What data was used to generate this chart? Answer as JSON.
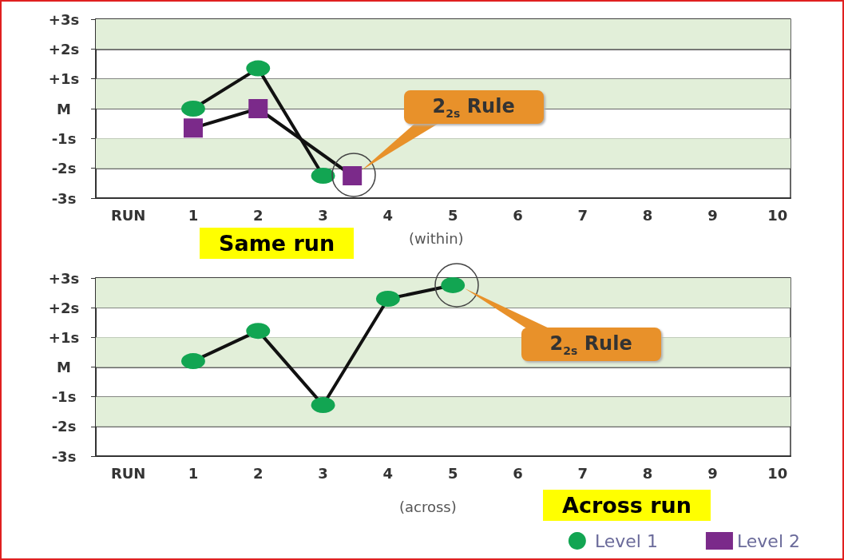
{
  "chart_data": [
    {
      "type": "line",
      "xlim": [
        -0.5,
        10.2
      ],
      "xticks": [
        {
          "value": 0,
          "label": "RUN"
        },
        1,
        2,
        3,
        4,
        5,
        6,
        7,
        8,
        9,
        10
      ],
      "ylim": [
        -3,
        3
      ],
      "yticks": [
        {
          "value": -3,
          "label": "-3s"
        },
        {
          "value": -2,
          "label": "-2s"
        },
        {
          "value": -1,
          "label": "-1s"
        },
        {
          "value": 0,
          "label": "M"
        },
        {
          "value": 1,
          "label": "+1s"
        },
        {
          "value": 2,
          "label": "+2s"
        },
        {
          "value": 3,
          "label": "+3s"
        }
      ],
      "grid": "y",
      "legend": "bottom right",
      "bands": [
        {
          "axis": "y",
          "from": 2,
          "to": 3,
          "color": "#e2efd9"
        },
        {
          "axis": "y",
          "from": 0,
          "to": 1,
          "color": "#e2efd9"
        },
        {
          "axis": "y",
          "from": -2,
          "to": -1,
          "color": "#e2efd9"
        }
      ],
      "series": [
        {
          "name": "Level 1",
          "color": "#12a552",
          "marker": "circle",
          "x": [
            1,
            2,
            3
          ],
          "values": [
            0,
            1.35,
            -2.25
          ]
        },
        {
          "name": "Level 2",
          "color": "#7b2a8a",
          "marker": "square",
          "x": [
            1,
            2,
            3.45
          ],
          "values": [
            -0.65,
            0,
            -2.25
          ]
        }
      ],
      "annotations": [
        "2$_{2s}$ Rule",
        "Same run",
        "(within)"
      ]
    },
    {
      "type": "line",
      "xlim": [
        -0.5,
        10.2
      ],
      "xticks": [
        {
          "value": 0,
          "label": "RUN"
        },
        1,
        2,
        3,
        4,
        5,
        6,
        7,
        8,
        9,
        10
      ],
      "ylim": [
        -3,
        3
      ],
      "yticks": [
        {
          "value": -3,
          "label": "-3s"
        },
        {
          "value": -2,
          "label": "-2s"
        },
        {
          "value": -1,
          "label": "-1s"
        },
        {
          "value": 0,
          "label": "M"
        },
        {
          "value": 1,
          "label": "+1s"
        },
        {
          "value": 2,
          "label": "+2s"
        },
        {
          "value": 3,
          "label": "+3s"
        }
      ],
      "grid": "y",
      "bands": [
        {
          "axis": "y",
          "from": 2,
          "to": 3,
          "color": "#e2efd9"
        },
        {
          "axis": "y",
          "from": 0,
          "to": 1,
          "color": "#e2efd9"
        },
        {
          "axis": "y",
          "from": -2,
          "to": -1,
          "color": "#e2efd9"
        }
      ],
      "series": [
        {
          "color": "#12a552",
          "marker": "circle",
          "x": [
            1,
            2,
            3,
            4,
            5
          ],
          "values": [
            0.2,
            1.22,
            -1.28,
            2.3,
            2.76
          ]
        }
      ],
      "annotations": [
        "2$_{2s}$ Rule",
        "(across)",
        "Across run"
      ]
    }
  ]
}
